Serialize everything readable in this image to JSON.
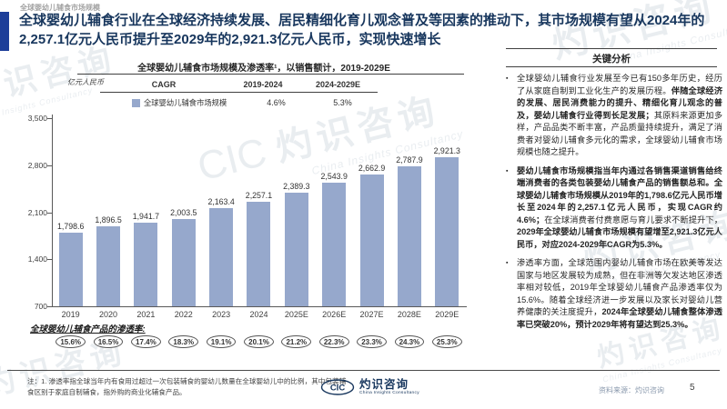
{
  "slide": {
    "eyebrow": "全球婴幼儿辅食市场规模",
    "title": "全球婴幼儿辅食行业在全球经济持续发展、居民精细化育儿观念普及等因素的推动下，其市场规模有望从2024年的2,257.1亿元人民币提升至2029年的2,921.3亿元人民币，实现快速增长"
  },
  "chart": {
    "title": "全球婴幼儿辅食市场规模及渗透率¹，以销售额计，2019-2029E",
    "unit_label": "亿元人民币",
    "cagr_table": {
      "header": "CAGR",
      "col1": "2019-2024",
      "col2": "2024-2029E",
      "legend_label": "全球婴幼儿辅食市场规模",
      "val1": "4.6%",
      "val2": "5.3%"
    }
  },
  "chart_data": {
    "type": "bar",
    "title": "全球婴幼儿辅食市场规模及渗透率，以销售额计，2019-2029E",
    "ylabel": "亿元人民币",
    "categories": [
      "2019",
      "2020",
      "2021",
      "2022",
      "2023",
      "2024",
      "2025E",
      "2026E",
      "2027E",
      "2028E",
      "2029E"
    ],
    "values": [
      1798.6,
      1896.5,
      1941.7,
      2003.5,
      2163.4,
      2257.1,
      2389.3,
      2543.9,
      2662.9,
      2787.9,
      2921.3
    ],
    "value_labels": [
      "1,798.6",
      "1,896.5",
      "1,941.7",
      "2,003.5",
      "2,163.4",
      "2,257.1",
      "2,389.3",
      "2,543.9",
      "2,662.9",
      "2,787.9",
      "2,921.3"
    ],
    "ylim": [
      700,
      3500
    ],
    "yticks": [
      700,
      1400,
      2100,
      2800,
      3500
    ],
    "ytick_labels": [
      "700",
      "1,400",
      "2,100",
      "2,800",
      "3,500"
    ],
    "grid": false,
    "bar_color": "#96a8cc",
    "legend_position": "top",
    "cagr_2019_2024": "4.6%",
    "cagr_2024_2029E": "5.3%",
    "penetration": {
      "label": "全球婴幼儿辅食产品的渗透率:",
      "values": [
        "15.6%",
        "16.5%",
        "17.4%",
        "18.3%",
        "19.1%",
        "20.1%",
        "21.2%",
        "22.3%",
        "23.3%",
        "24.3%",
        "25.3%"
      ]
    }
  },
  "analysis": {
    "header": "关键分析",
    "bullets": [
      {
        "runs": [
          {
            "text": "全球婴幼儿辅食行业发展至今已有150多年历史，经历了从家庭自制到工业化生产的发展历程。",
            "bold": false
          },
          {
            "text": "伴随全球经济的发展、居民消费能力的提升、精细化育儿观念的普及，婴幼儿辅食行业得到长足发展；",
            "bold": true
          },
          {
            "text": "其原料来源更加多样，产品品类不断丰富，产品质量持续提升，满足了消费者对婴幼儿辅食多元化的需求，全球婴幼儿辅食市场规模也随之提升。",
            "bold": false
          }
        ]
      },
      {
        "runs": [
          {
            "text": "婴幼儿辅食市场规模指当年内通过各销售渠道销售给终端消费者的各类包装婴幼儿辅食产品的销售额总和。",
            "bold": true
          },
          {
            "text": "全球婴幼儿辅食市场规模从2019年的1,798.6亿元人民币增长至2024年的2,257.1亿元人民币，实现CAGR约4.6%；",
            "bold": true
          },
          {
            "text": "在全球消费者付费意愿与育儿要求不断提升下，",
            "bold": false
          },
          {
            "text": "2029年全球婴幼儿辅食市场规模有望增至2,921.3亿元人民币，对应2024-2029年CAGR为5.3%。",
            "bold": true
          }
        ]
      },
      {
        "runs": [
          {
            "text": "渗透率方面，全球范围内婴幼儿辅食市场在欧美等发达国家与地区发展较为成熟，但在非洲等欠发达地区渗透率相对较低，2019年全球婴幼儿辅食产品渗透率仅为15.6%。随着全球经济进一步发展以及家长对婴幼儿营养健康的关注度提升，",
            "bold": false
          },
          {
            "text": "2024年全球婴幼儿辅食整体渗透率已突破20%，预计2029年将有望达到25.3%。",
            "bold": true
          }
        ]
      }
    ]
  },
  "footer": {
    "note": "注：1. 渗透率指全球当年内有食用过超过一次包装辅食的婴幼儿数量在全球婴幼儿中的比例，其中包装辅食区别于家庭自制辅食，指外购的商业化辅食产品。",
    "logo_cic": "CIC",
    "logo_name": "灼识咨询",
    "logo_subtitle": "China Insights Consultancy",
    "source": "资料来源：灼识咨询",
    "page": "5"
  },
  "watermark": {
    "cic": "CIC",
    "cjk": "灼识咨询",
    "latin": "China Insights Consultancy"
  },
  "colors": {
    "accent_navy": "#17365d",
    "accent_bar_blue": "#1d3e99",
    "bar_fill": "#96a8cc",
    "source_text": "#8a99ad"
  }
}
